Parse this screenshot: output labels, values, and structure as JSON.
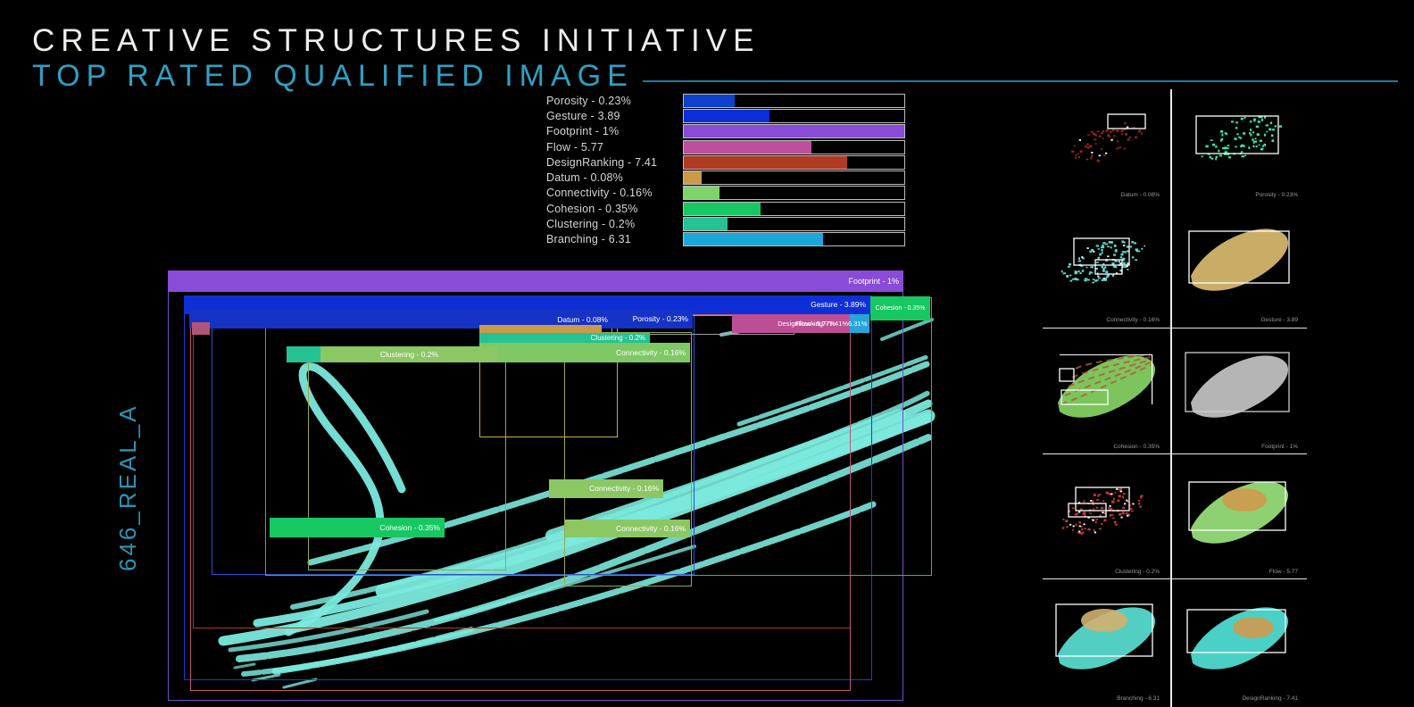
{
  "header": {
    "title": "CREATIVE STRUCTURES INITIATIVE",
    "subtitle": "TOP RATED QUALIFIED IMAGE",
    "accent_color": "#2fa0c2"
  },
  "canvas_id": "646_REAL_A",
  "metrics": [
    {
      "id": "porosity",
      "name": "Porosity",
      "value": "0.23%",
      "label": "Porosity - 0.23%",
      "fill_pct": 23,
      "color": "#0d41cc"
    },
    {
      "id": "gesture",
      "name": "Gesture",
      "value": "3.89",
      "label": "Gesture - 3.89",
      "fill_pct": 39,
      "color": "#0a2ed8"
    },
    {
      "id": "footprint",
      "name": "Footprint",
      "value": "1%",
      "label": "Footprint - 1%",
      "fill_pct": 100,
      "color": "#8a4bd8"
    },
    {
      "id": "flow",
      "name": "Flow",
      "value": "5.77",
      "label": "Flow - 5.77",
      "fill_pct": 58,
      "color": "#bc4f9e"
    },
    {
      "id": "designranking",
      "name": "DesignRanking",
      "value": "7.41",
      "label": "DesignRanking - 7.41",
      "fill_pct": 74,
      "color": "#b03a22"
    },
    {
      "id": "datum",
      "name": "Datum",
      "value": "0.08%",
      "label": "Datum - 0.08%",
      "fill_pct": 8,
      "color": "#c89a4a"
    },
    {
      "id": "connectivity",
      "name": "Connectivity",
      "value": "0.16%",
      "label": "Connectivity - 0.16%",
      "fill_pct": 16,
      "color": "#7ed36a"
    },
    {
      "id": "cohesion",
      "name": "Cohesion",
      "value": "0.35%",
      "label": "Cohesion - 0.35%",
      "fill_pct": 35,
      "color": "#17c862"
    },
    {
      "id": "clustering",
      "name": "Clustering",
      "value": "0.2%",
      "label": "Clustering - 0.2%",
      "fill_pct": 20,
      "color": "#25c294"
    },
    {
      "id": "branching",
      "name": "Branching",
      "value": "6.31",
      "label": "Branching - 6.31",
      "fill_pct": 63,
      "color": "#1ba7d8"
    }
  ],
  "chart_data": {
    "type": "bar",
    "orientation": "horizontal",
    "title": "",
    "xlabel": "",
    "ylabel": "",
    "categories": [
      "Porosity",
      "Gesture",
      "Footprint",
      "Flow",
      "DesignRanking",
      "Datum",
      "Connectivity",
      "Cohesion",
      "Clustering",
      "Branching"
    ],
    "values": [
      0.23,
      3.89,
      1,
      5.77,
      7.41,
      0.08,
      0.16,
      0.35,
      0.2,
      6.31
    ],
    "tick_labels": [
      "Porosity - 0.23%",
      "Gesture - 3.89",
      "Footprint - 1%",
      "Flow - 5.77",
      "DesignRanking - 7.41",
      "Datum - 0.08%",
      "Connectivity - 0.16%",
      "Cohesion - 0.35%",
      "Clustering - 0.2%",
      "Branching - 6.31"
    ],
    "bar_fill_percent": [
      23,
      38.9,
      100,
      57.7,
      74.1,
      8,
      16,
      35,
      20,
      63.1
    ],
    "colors": [
      "#0d41cc",
      "#0a2ed8",
      "#8a4bd8",
      "#bc4f9e",
      "#b03a22",
      "#c89a4a",
      "#7ed36a",
      "#17c862",
      "#25c294",
      "#1ba7d8"
    ],
    "grid": false,
    "legend_position": "left-labels",
    "background": "#000000"
  },
  "main_view": {
    "annotations": [
      {
        "id": "footprint-bar",
        "label": "Footprint - 1%"
      },
      {
        "id": "gesture-bar",
        "label": "Gesture - 3.89%"
      },
      {
        "id": "cohesion-chip",
        "label": "Cohesion - 0.35%"
      },
      {
        "id": "porosity-bar",
        "label": "Porosity - 0.23%"
      },
      {
        "id": "designranking-flow-chip",
        "label": "DesignRanking - 7.41%"
      },
      {
        "id": "flow-overlap-label",
        "label": "Flow - 5.77%"
      },
      {
        "id": "branching-chip",
        "label": "6.31%"
      },
      {
        "id": "datum-label",
        "label": "Datum - 0.08%"
      },
      {
        "id": "datum-strip",
        "label": ""
      },
      {
        "id": "clustering-strip",
        "label": "Clustering - 0.2%"
      },
      {
        "id": "connectivity-strip",
        "label": "Connectivity - 0.16%"
      },
      {
        "id": "clustering-box",
        "label": ""
      },
      {
        "id": "clustering-bar",
        "label": "Clustering - 0.2%"
      },
      {
        "id": "connectivity-bar-mid",
        "label": "Connectivity - 0.16%"
      },
      {
        "id": "connectivity-bar-low",
        "label": "Connectivity - 0.16%"
      },
      {
        "id": "cohesion-bar-low",
        "label": "Cohesion - 0.35%"
      },
      {
        "id": "porosity-mini-box",
        "label": ""
      },
      {
        "id": "flow-mini-box",
        "label": ""
      }
    ]
  },
  "thumbnails": [
    {
      "id": "datum",
      "label": "Datum - 0.08%"
    },
    {
      "id": "porosity",
      "label": "Porosity - 0.23%"
    },
    {
      "id": "connectivity",
      "label": "Connectivity - 0.16%"
    },
    {
      "id": "gesture",
      "label": "Gesture - 3.89"
    },
    {
      "id": "cohesion",
      "label": "Cohesion - 0.35%"
    },
    {
      "id": "footprint",
      "label": "Footprint - 1%"
    },
    {
      "id": "clustering",
      "label": "Clustering - 0.2%"
    },
    {
      "id": "flow",
      "label": "Flow - 5.77"
    },
    {
      "id": "branching",
      "label": "Branching - 6.31"
    },
    {
      "id": "designranking",
      "label": "DesignRanking - 7.41"
    }
  ]
}
